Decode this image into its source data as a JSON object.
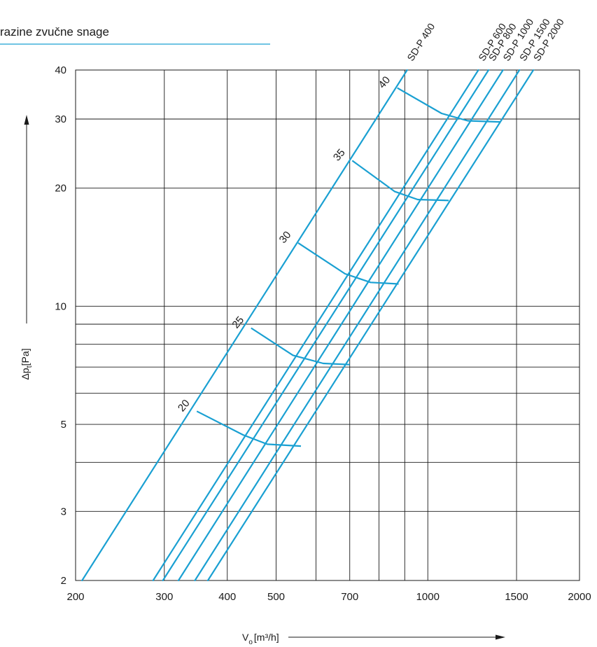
{
  "header": {
    "title": "razine zvučne snage",
    "underline_color": "#1aa0d2"
  },
  "chart_data": {
    "type": "line",
    "x_scale": "log",
    "y_scale": "log",
    "xlim": [
      200,
      2000
    ],
    "ylim": [
      2,
      40
    ],
    "x_ticks": [
      200,
      300,
      400,
      500,
      700,
      1000,
      1500,
      2000
    ],
    "x_grid": [
      300,
      400,
      500,
      600,
      700,
      800,
      900,
      1000,
      1500
    ],
    "y_ticks": [
      2,
      3,
      5,
      10,
      20,
      30,
      40
    ],
    "y_grid": [
      3,
      4,
      5,
      6,
      7,
      8,
      9,
      10,
      20,
      30
    ],
    "grid": true,
    "xlabel": "V",
    "xlabel_sub": "o",
    "xlabel_unit": "[m³/h]",
    "ylabel": "Δp",
    "ylabel_sub": "t",
    "ylabel_unit": "[Pa]",
    "line_color": "#1aa0d2",
    "series": [
      {
        "name": "SD-P 400",
        "x": [
          206,
          910
        ],
        "y": [
          2,
          40
        ]
      },
      {
        "name": "SD-P 600",
        "x": [
          285,
          1260
        ],
        "y": [
          2,
          40
        ]
      },
      {
        "name": "SD-P 800",
        "x": [
          298,
          1320
        ],
        "y": [
          2,
          40
        ]
      },
      {
        "name": "SD-P 1000",
        "x": [
          320,
          1410
        ],
        "y": [
          2,
          40
        ]
      },
      {
        "name": "SD-P 1500",
        "x": [
          345,
          1520
        ],
        "y": [
          2,
          40
        ]
      },
      {
        "name": "SD-P 2000",
        "x": [
          366,
          1620
        ],
        "y": [
          2,
          40
        ]
      }
    ],
    "sound_levels": [
      {
        "label": "20",
        "x": [
          348,
          430,
          480,
          560
        ],
        "y": [
          5.4,
          4.7,
          4.45,
          4.4
        ]
      },
      {
        "label": "25",
        "x": [
          446,
          540,
          620,
          700
        ],
        "y": [
          8.8,
          7.5,
          7.15,
          7.1
        ]
      },
      {
        "label": "30",
        "x": [
          553,
          685,
          770,
          875
        ],
        "y": [
          14.5,
          12.1,
          11.5,
          11.4
        ]
      },
      {
        "label": "35",
        "x": [
          708,
          860,
          955,
          1100
        ],
        "y": [
          23.5,
          19.6,
          18.7,
          18.6
        ]
      },
      {
        "label": "40",
        "x": [
          870,
          1065,
          1200,
          1390
        ],
        "y": [
          36.0,
          31.0,
          29.7,
          29.5
        ]
      }
    ]
  }
}
